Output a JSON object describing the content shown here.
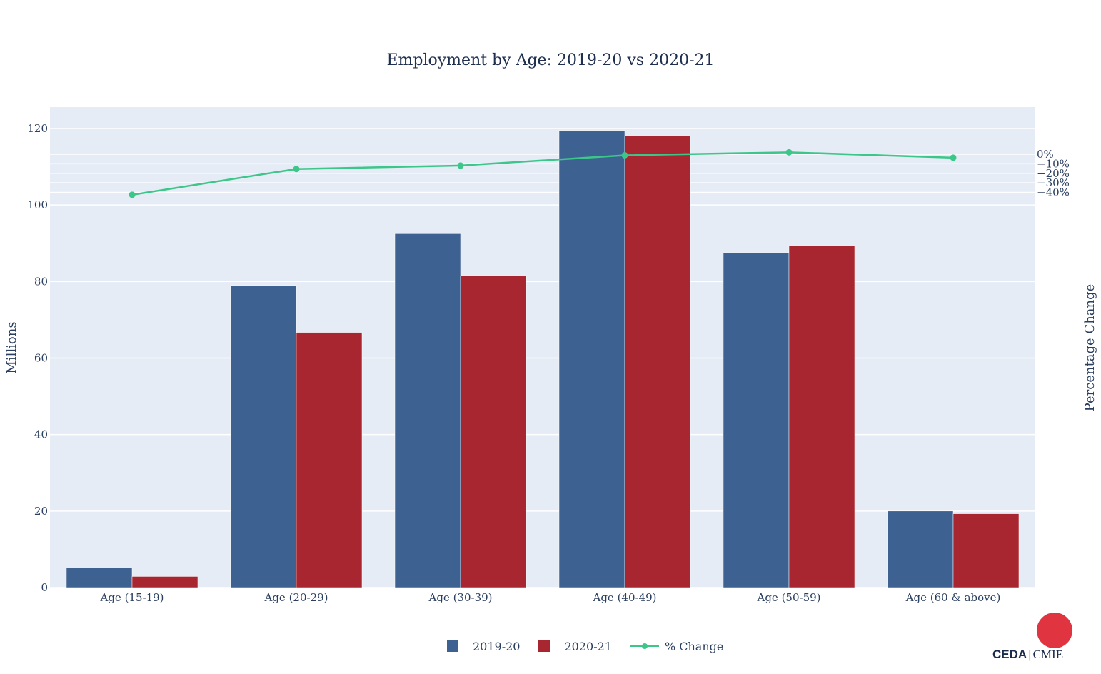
{
  "colors": {
    "series1": "#3d6191",
    "series2": "#a8262f",
    "line": "#3cc68a",
    "plot_bg": "#e5ecf6",
    "grid": "#ffffff",
    "logo": "#e03440"
  },
  "logo": {
    "left": "CEDA",
    "right": "CMIE"
  },
  "chart_data": {
    "type": "bar",
    "title": "Employment by Age: 2019-20 vs 2020-21",
    "categories": [
      "Age (15-19)",
      "Age (20-29)",
      "Age (30-39)",
      "Age (40-49)",
      "Age (50-59)",
      "Age (60 & above)"
    ],
    "series": [
      {
        "name": "2019-20",
        "type": "bar",
        "values": [
          5.1,
          79.0,
          92.5,
          119.5,
          87.5,
          20.0
        ]
      },
      {
        "name": "2020-21",
        "type": "bar",
        "values": [
          2.9,
          66.7,
          81.5,
          118.0,
          89.3,
          19.3
        ]
      },
      {
        "name": "% Change",
        "type": "line",
        "axis": "y2",
        "values": [
          -42.5,
          -15.5,
          -11.9,
          -1.1,
          2.0,
          -3.6
        ]
      }
    ],
    "ylabel": "Millions",
    "y2label": "Percentage Change",
    "ylim": [
      0,
      120
    ],
    "y2lim": [
      -45,
      5
    ],
    "yticks": [
      0,
      20,
      40,
      60,
      80,
      100,
      120
    ],
    "y2ticks": [
      0,
      -10,
      -20,
      -30,
      -40
    ],
    "y2tick_labels": [
      "0%",
      "−10%",
      "−20%",
      "−30%",
      "−40%"
    ],
    "grid": true,
    "legend_position": "bottom-center"
  }
}
